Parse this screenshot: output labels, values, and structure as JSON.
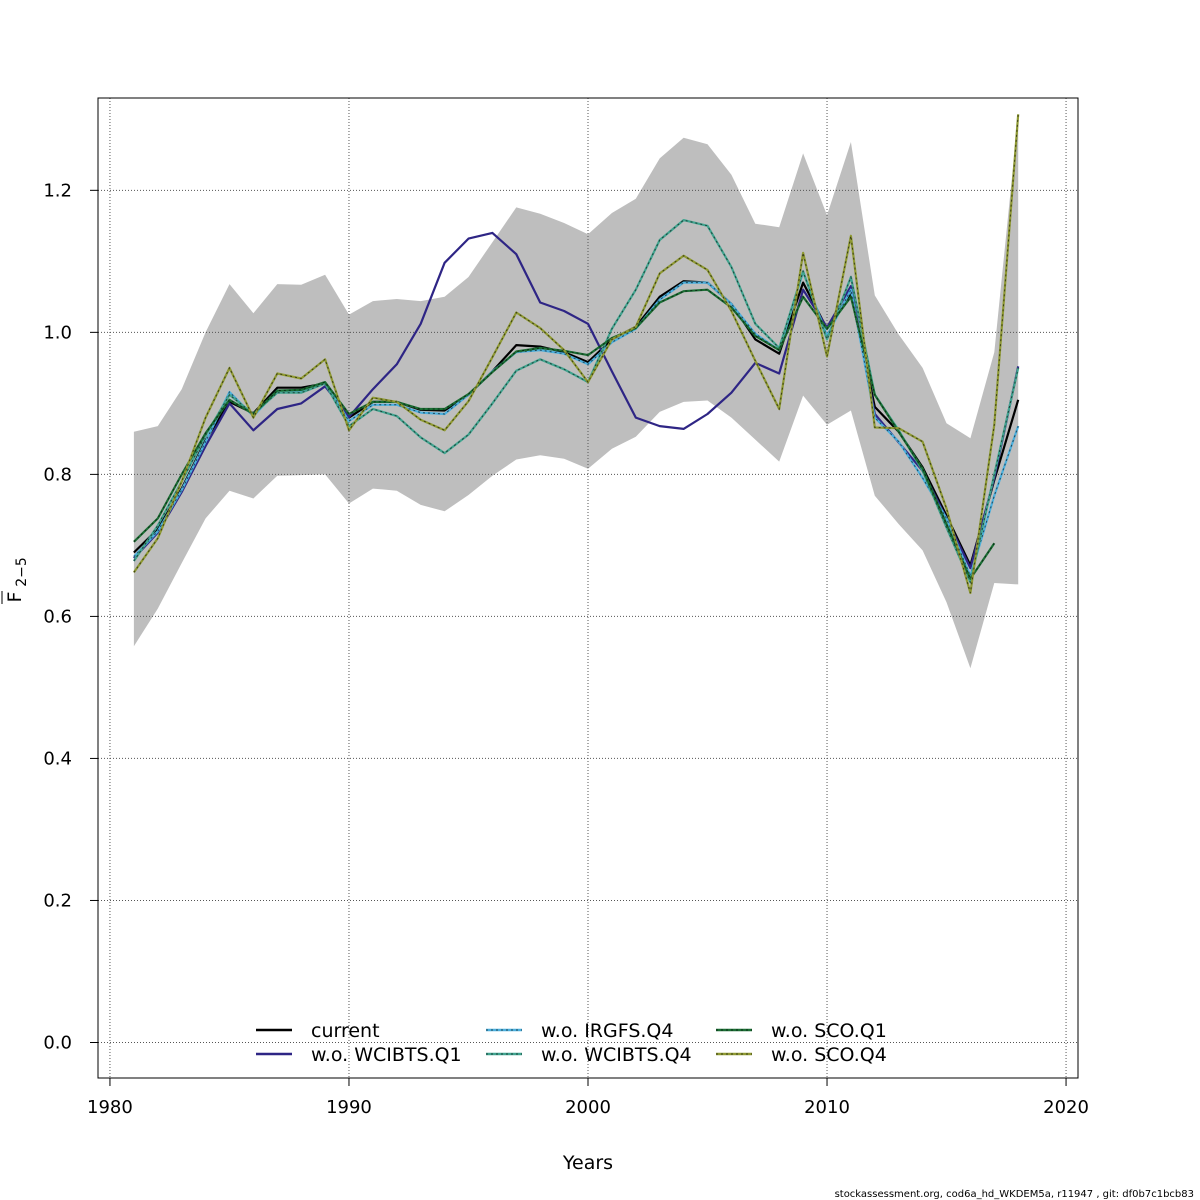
{
  "chart_data": {
    "type": "line",
    "xlabel": "Years",
    "ylabel_main": "F",
    "ylabel_sub": "2−5",
    "xlim": [
      1979.5,
      2020.5
    ],
    "ylim": [
      -0.05,
      1.33
    ],
    "x_ticks": [
      1980,
      1990,
      2000,
      2010,
      2020
    ],
    "y_ticks": [
      0.0,
      0.2,
      0.4,
      0.6,
      0.8,
      1.0,
      1.2
    ],
    "y_tick_labels": [
      "0.0",
      "0.2",
      "0.4",
      "0.6",
      "0.8",
      "1.0",
      "1.2"
    ],
    "grid": true,
    "legend_position": "bottom",
    "footer": "stockassessment.org, cod6a_hd_WKDEM5a, r11947 , git: df0b7c1bcb83",
    "years": [
      1981,
      1982,
      1983,
      1984,
      1985,
      1986,
      1987,
      1988,
      1989,
      1990,
      1991,
      1992,
      1993,
      1994,
      1995,
      1996,
      1997,
      1998,
      1999,
      2000,
      2001,
      2002,
      2003,
      2004,
      2005,
      2006,
      2007,
      2008,
      2009,
      2010,
      2011,
      2012,
      2013,
      2014,
      2015,
      2016,
      2017,
      2018
    ],
    "confidence_band": {
      "upper": [
        0.86,
        0.868,
        0.92,
        1.0,
        1.068,
        1.027,
        1.068,
        1.067,
        1.081,
        1.025,
        1.044,
        1.047,
        1.044,
        1.05,
        1.078,
        1.127,
        1.176,
        1.167,
        1.154,
        1.138,
        1.168,
        1.188,
        1.245,
        1.274,
        1.265,
        1.222,
        1.153,
        1.148,
        1.252,
        1.165,
        1.268,
        1.052,
        0.997,
        0.95,
        0.872,
        0.851,
        0.972,
        1.305
      ],
      "lower": [
        0.558,
        0.611,
        0.675,
        0.738,
        0.777,
        0.766,
        0.798,
        0.799,
        0.8,
        0.759,
        0.78,
        0.777,
        0.757,
        0.748,
        0.771,
        0.798,
        0.821,
        0.827,
        0.822,
        0.808,
        0.836,
        0.853,
        0.888,
        0.902,
        0.904,
        0.88,
        0.849,
        0.818,
        0.911,
        0.87,
        0.89,
        0.77,
        0.73,
        0.693,
        0.62,
        0.527,
        0.647,
        0.645
      ],
      "color": "#bebebe"
    },
    "series": [
      {
        "name": "current",
        "color": "#000000",
        "values": [
          0.69,
          0.723,
          0.78,
          0.848,
          0.902,
          0.886,
          0.922,
          0.922,
          0.928,
          0.88,
          0.902,
          0.902,
          0.891,
          0.89,
          0.912,
          0.945,
          0.982,
          0.98,
          0.972,
          0.958,
          0.99,
          1.008,
          1.05,
          1.072,
          1.07,
          1.04,
          0.99,
          0.97,
          1.07,
          1.005,
          1.055,
          0.895,
          0.86,
          0.81,
          0.742,
          0.672,
          0.792,
          0.905
        ]
      },
      {
        "name": "w.o. WCIBTS.Q1",
        "color": "#2e2585",
        "values": [
          0.682,
          0.718,
          0.775,
          0.84,
          0.9,
          0.862,
          0.892,
          0.9,
          0.924,
          0.881,
          0.92,
          0.955,
          1.012,
          1.098,
          1.132,
          1.14,
          1.11,
          1.042,
          1.03,
          1.012,
          0.945,
          0.88,
          0.868,
          0.864,
          0.885,
          0.915,
          0.957,
          0.942,
          1.06,
          1.007,
          1.065,
          0.885,
          0.845,
          0.805,
          0.738,
          0.668,
          0.795,
          0.952
        ]
      },
      {
        "name": "w.o. IRGFS.Q4",
        "color": "#4cb0de",
        "values": [
          0.684,
          0.72,
          0.778,
          0.846,
          0.916,
          0.882,
          0.918,
          0.918,
          0.929,
          0.875,
          0.898,
          0.898,
          0.887,
          0.885,
          0.912,
          0.945,
          0.972,
          0.975,
          0.97,
          0.955,
          0.986,
          1.005,
          1.046,
          1.07,
          1.07,
          1.04,
          0.998,
          0.975,
          1.085,
          0.995,
          1.06,
          0.88,
          0.846,
          0.795,
          0.738,
          0.657,
          0.77,
          0.868
        ]
      },
      {
        "name": "w.o. WCIBTS.Q4",
        "color": "#41a48f",
        "values": [
          0.678,
          0.728,
          0.79,
          0.855,
          0.912,
          0.885,
          0.915,
          0.915,
          0.928,
          0.868,
          0.892,
          0.882,
          0.852,
          0.83,
          0.856,
          0.9,
          0.946,
          0.962,
          0.948,
          0.93,
          1.005,
          1.06,
          1.13,
          1.158,
          1.15,
          1.092,
          1.012,
          0.978,
          1.086,
          0.99,
          1.078,
          0.912,
          0.862,
          0.805,
          0.725,
          0.648,
          0.8,
          0.95
        ]
      },
      {
        "name": "w.o. SCO.Q1",
        "color": "#1b6e34",
        "values": [
          0.705,
          0.738,
          0.8,
          0.858,
          0.905,
          0.885,
          0.918,
          0.919,
          0.93,
          0.885,
          0.902,
          0.902,
          0.892,
          0.892,
          0.913,
          0.944,
          0.973,
          0.978,
          0.974,
          0.968,
          0.992,
          1.006,
          1.042,
          1.058,
          1.06,
          1.035,
          0.995,
          0.975,
          1.05,
          1.005,
          1.05,
          0.912,
          0.86,
          0.808,
          0.73,
          0.653,
          0.703,
          null
        ]
      },
      {
        "name": "w.o. SCO.Q4",
        "color": "#8f9a33",
        "values": [
          0.662,
          0.71,
          0.79,
          0.88,
          0.95,
          0.88,
          0.942,
          0.935,
          0.962,
          0.862,
          0.908,
          0.902,
          0.877,
          0.862,
          0.903,
          0.965,
          1.028,
          1.006,
          0.975,
          0.93,
          0.99,
          1.008,
          1.083,
          1.108,
          1.088,
          1.03,
          0.96,
          0.892,
          1.112,
          0.966,
          1.136,
          0.866,
          0.865,
          0.846,
          0.752,
          0.633,
          0.87,
          1.307
        ]
      }
    ]
  }
}
